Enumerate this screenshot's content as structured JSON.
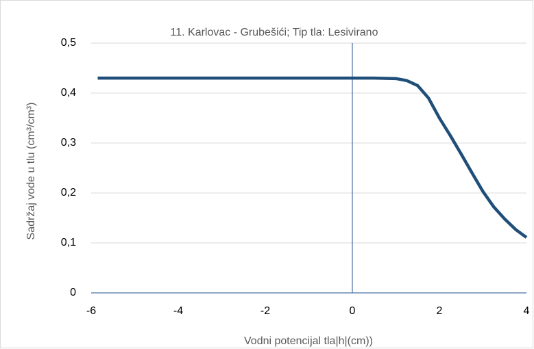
{
  "chart_data": {
    "type": "line",
    "title": "11. Karlovac - Grubešići; Tip tla: Lesivirano",
    "x_label": "Vodni potencijal tla|h|(cm))",
    "y_label": "Sadržaj vode u tlu  (cm³/cm³)",
    "x": [
      -5.85,
      -4,
      -2,
      0,
      0.5,
      1,
      1.25,
      1.5,
      1.75,
      2,
      2.25,
      2.5,
      2.75,
      3,
      3.25,
      3.5,
      3.75,
      4
    ],
    "series": [
      {
        "name": "Sadržaj vode",
        "color": "#1f4e79",
        "values": [
          0.43,
          0.43,
          0.43,
          0.43,
          0.43,
          0.429,
          0.425,
          0.415,
          0.39,
          0.35,
          0.315,
          0.278,
          0.24,
          0.203,
          0.172,
          0.148,
          0.127,
          0.111
        ]
      }
    ],
    "xlim": [
      -6,
      4
    ],
    "xticks": [
      -6,
      -4,
      -2,
      0,
      2,
      4
    ],
    "ylim": [
      0,
      0.5
    ],
    "yticks": [
      {
        "value": 0,
        "label": "0"
      },
      {
        "value": 0.1,
        "label": "0,1"
      },
      {
        "value": 0.2,
        "label": "0,2"
      },
      {
        "value": 0.3,
        "label": "0,3"
      },
      {
        "value": 0.4,
        "label": "0,4"
      },
      {
        "value": 0.5,
        "label": "0,5"
      }
    ],
    "grid": true
  }
}
